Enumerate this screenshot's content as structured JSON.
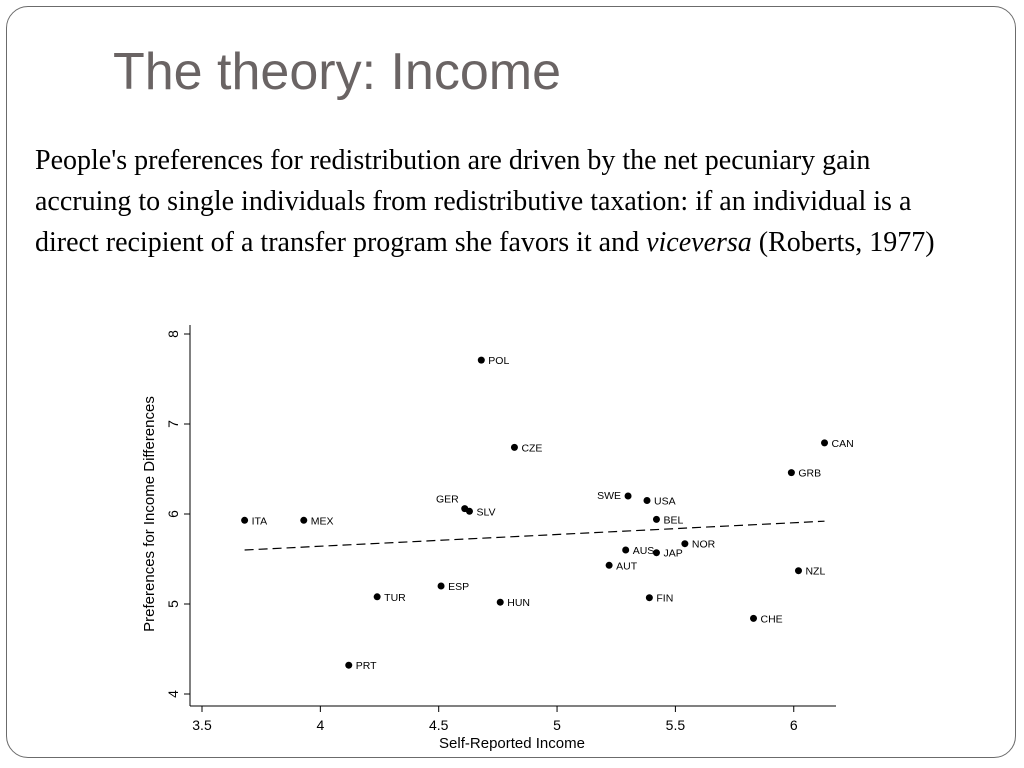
{
  "slide": {
    "title": "The theory: Income",
    "body": {
      "before": "People's preferences for redistribution are driven by the net pecuniary gain accruing to single individuals from redistributive taxation: if an individual is a direct recipient of a transfer program she favors it and ",
      "italic": "viceversa",
      "after": " (Roberts, 1977)"
    }
  },
  "chart_data": {
    "type": "scatter",
    "xlabel": "Self-Reported Income",
    "ylabel": "Preferences for Income Differences",
    "xlim": [
      3.5,
      6.15
    ],
    "ylim": [
      4,
      8
    ],
    "xticks": [
      3.5,
      4,
      4.5,
      5,
      5.5,
      6
    ],
    "xtick_labels": [
      "3.5",
      "4",
      "4.5",
      "5",
      "5.5",
      "6"
    ],
    "yticks": [
      4,
      5,
      6,
      7,
      8
    ],
    "ytick_labels": [
      "4",
      "5",
      "6",
      "7",
      "8"
    ],
    "grid": false,
    "points": [
      {
        "label": "POL",
        "x": 4.68,
        "y": 7.71
      },
      {
        "label": "CZE",
        "x": 4.82,
        "y": 6.74
      },
      {
        "label": "CAN",
        "x": 6.13,
        "y": 6.79
      },
      {
        "label": "GRB",
        "x": 5.99,
        "y": 6.46
      },
      {
        "label": "SWE",
        "x": 5.3,
        "y": 6.2
      },
      {
        "label": "USA",
        "x": 5.38,
        "y": 6.15
      },
      {
        "label": "GER",
        "x": 4.61,
        "y": 6.06
      },
      {
        "label": "SLV",
        "x": 4.63,
        "y": 6.03
      },
      {
        "label": "ITA",
        "x": 3.68,
        "y": 5.93
      },
      {
        "label": "MEX",
        "x": 3.93,
        "y": 5.93
      },
      {
        "label": "BEL",
        "x": 5.42,
        "y": 5.94
      },
      {
        "label": "NOR",
        "x": 5.54,
        "y": 5.67
      },
      {
        "label": "AUS",
        "x": 5.29,
        "y": 5.6
      },
      {
        "label": "JAP",
        "x": 5.42,
        "y": 5.57
      },
      {
        "label": "AUT",
        "x": 5.22,
        "y": 5.43
      },
      {
        "label": "NZL",
        "x": 6.02,
        "y": 5.37
      },
      {
        "label": "ESP",
        "x": 4.51,
        "y": 5.2
      },
      {
        "label": "TUR",
        "x": 4.24,
        "y": 5.08
      },
      {
        "label": "FIN",
        "x": 5.39,
        "y": 5.07
      },
      {
        "label": "HUN",
        "x": 4.76,
        "y": 5.02
      },
      {
        "label": "CHE",
        "x": 5.83,
        "y": 4.84
      },
      {
        "label": "PRT",
        "x": 4.12,
        "y": 4.32
      }
    ],
    "fit_line": {
      "style": "dashed",
      "x": [
        3.68,
        6.13
      ],
      "y": [
        5.6,
        5.92
      ]
    }
  }
}
